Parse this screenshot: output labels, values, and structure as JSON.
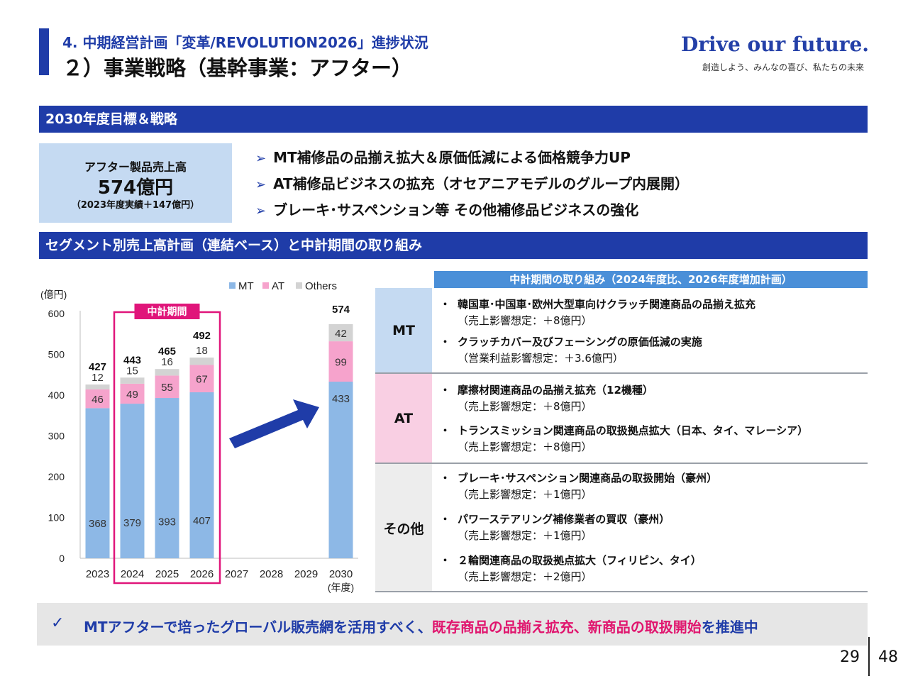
{
  "header": {
    "subtitle": "4.  中期経営計画「変革/REVOLUTION2026」進捗状況",
    "title": "２）事業戦略（基幹事業：アフター）",
    "brand": "Drive our future.",
    "brand_sub": "創造しよう、みんなの喜び、私たちの未来"
  },
  "section1": {
    "title": "2030年度目標＆戦略",
    "target": {
      "label": "アフター製品売上高",
      "value": "574億円",
      "note": "（2023年度実績＋147億円）"
    },
    "strategies": [
      "MT補修品の品揃え拡大＆原価低減による価格競争力UP",
      "AT補修品ビジネスの拡充（オセアニアモデルのグループ内展開）",
      "ブレーキ･サスペンション等 その他補修品ビジネスの強化"
    ],
    "bullet_glyph": "➢"
  },
  "section2": {
    "title": "セグメント別売上高計画（連結ベース）と中計期間の取り組み"
  },
  "chart_data": {
    "type": "bar",
    "stacked": true,
    "categories": [
      "2023",
      "2024",
      "2025",
      "2026",
      "2027",
      "2028",
      "2029",
      "2030"
    ],
    "series": [
      {
        "name": "MT",
        "values": [
          368,
          379,
          393,
          407,
          null,
          null,
          null,
          433
        ],
        "color": "#8db8e6"
      },
      {
        "name": "AT",
        "values": [
          46,
          49,
          55,
          67,
          null,
          null,
          null,
          99
        ],
        "color": "#f6a3cc"
      },
      {
        "name": "Others",
        "values": [
          12,
          15,
          16,
          18,
          null,
          null,
          null,
          42
        ],
        "color": "#d3d3d3"
      }
    ],
    "totals": [
      427,
      443,
      465,
      492,
      null,
      null,
      null,
      574
    ],
    "ylabel": "(億円)",
    "xlabel": "(年度)",
    "ylim": [
      0,
      600
    ],
    "yticks": [
      0,
      100,
      200,
      300,
      400,
      500,
      600
    ],
    "highlight_label": "中計期間",
    "highlight_categories": [
      "2024",
      "2025",
      "2026"
    ],
    "legend_position": "top",
    "highlight_color": "#e0157a"
  },
  "initiatives": {
    "header": "中計期間の取り組み（2024年度比、2026年度増加計画）",
    "bullet": "・",
    "rows": [
      {
        "category": "MT",
        "color": "#c5daf2",
        "items": [
          {
            "main": "韓国車･中国車･欧州大型車向けクラッチ関連商品の品揃え拡充",
            "sub": "（売上影響想定：＋8億円）"
          },
          {
            "main": "クラッチカバー及びフェーシングの原価低減の実施",
            "sub": "（営業利益影響想定：＋3.6億円）"
          }
        ]
      },
      {
        "category": "AT",
        "color": "#f9cfe3",
        "items": [
          {
            "main": "摩擦材関連商品の品揃え拡充（12機種）",
            "sub": "（売上影響想定：＋8億円）"
          },
          {
            "main": "トランスミッション関連商品の取扱拠点拡大（日本、タイ、マレーシア）",
            "sub": "（売上影響想定：＋8億円）"
          }
        ]
      },
      {
        "category": "その他",
        "color": "#ededed",
        "items": [
          {
            "main": "ブレーキ･サスペンション関連商品の取扱開始（豪州）",
            "sub": "（売上影響想定：＋1億円）"
          },
          {
            "main": "パワーステアリング補修業者の買収（豪州）",
            "sub": "（売上影響想定：＋1億円）"
          },
          {
            "main": "２輪関連商品の取扱拠点拡大（フィリピン、タイ）",
            "sub": "（売上影響想定：＋2億円）"
          }
        ]
      }
    ]
  },
  "footer": {
    "check": "✓",
    "text_a": "MTアフターで培ったグローバル販売網を活用すべく、",
    "text_b": "既存商品の品揃え拡充、新商品の取扱開始",
    "text_c": "を推進中",
    "page": "29",
    "total": "48"
  }
}
